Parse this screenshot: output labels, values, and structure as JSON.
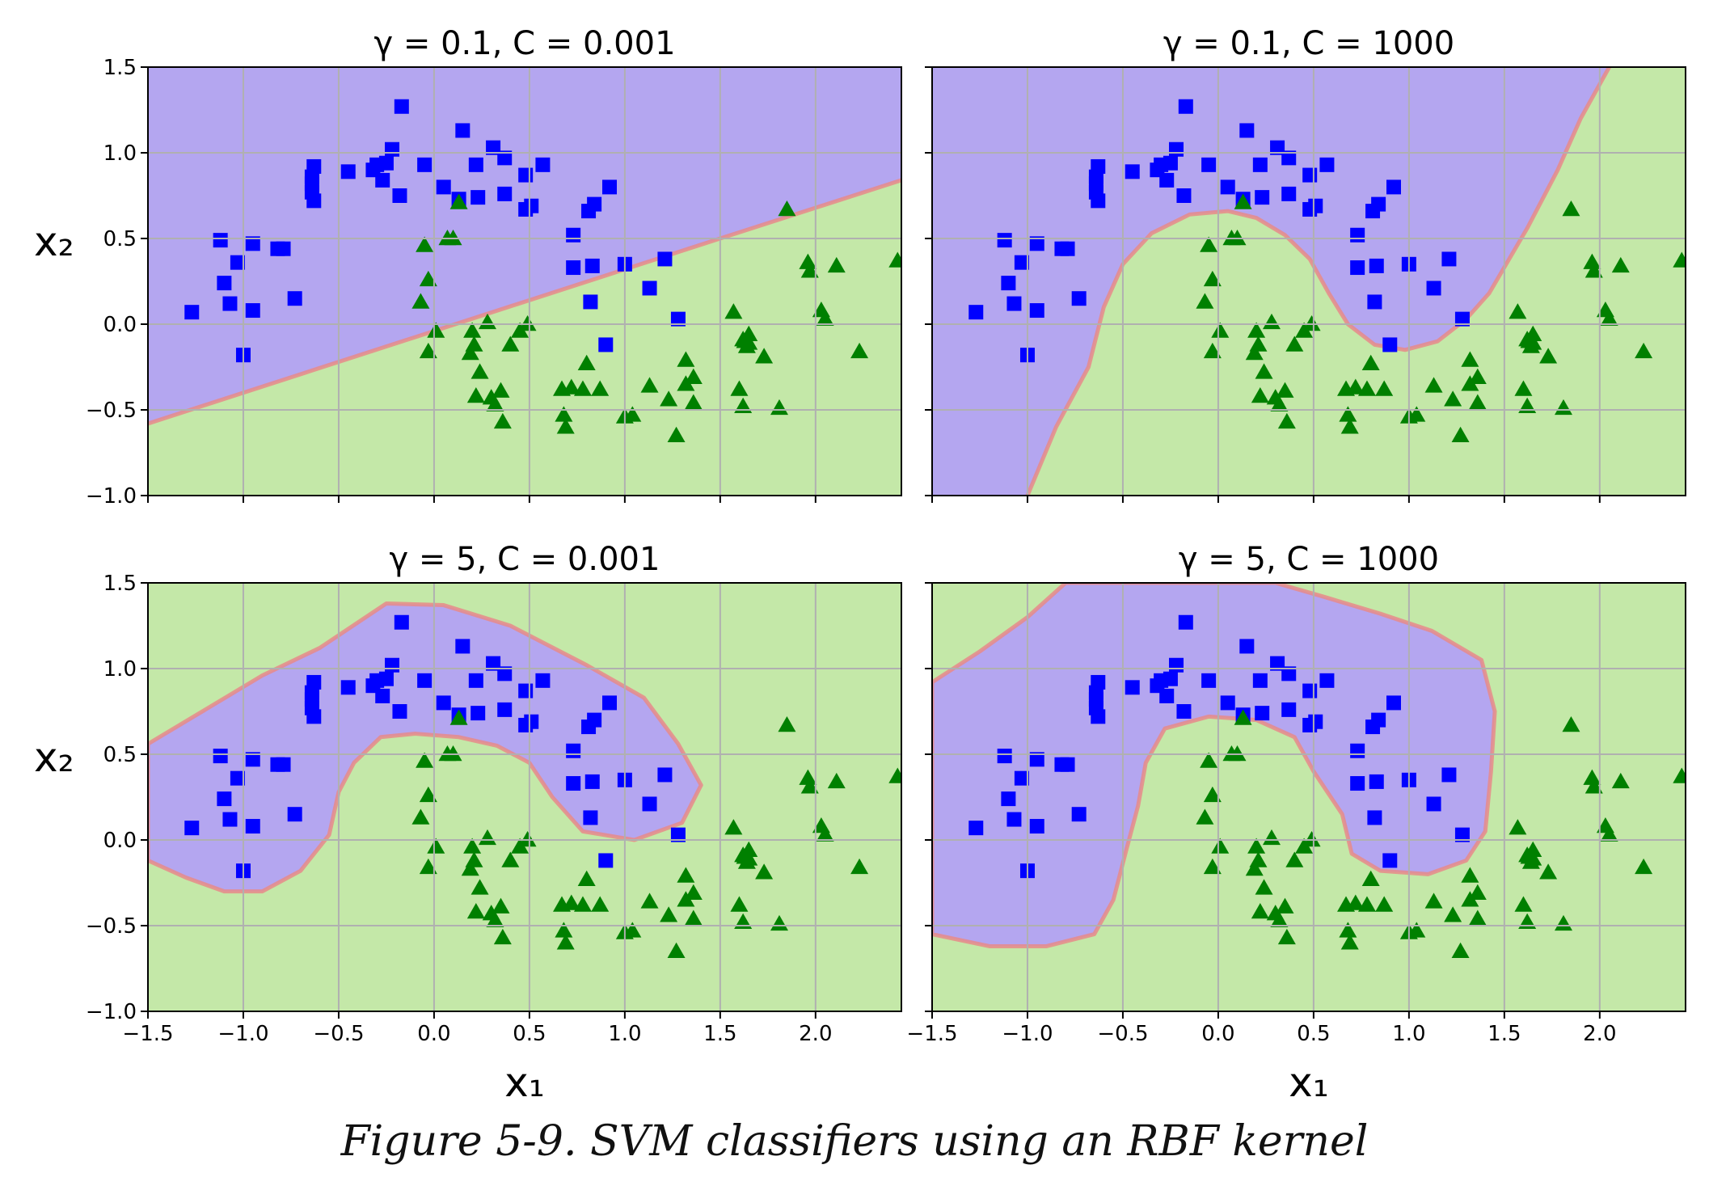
{
  "caption": "Figure 5-9. SVM classifiers using an RBF kernel",
  "colors": {
    "class0_marker": "#0000ff",
    "class1_marker": "#008000",
    "class0_region": "#b4a6f0",
    "class1_region": "#c4e8a8",
    "boundary": "#e88a8a",
    "grid": "#b0b0b0"
  },
  "points": {
    "squares": [
      [
        -1.27,
        0.07
      ],
      [
        -1.12,
        0.49
      ],
      [
        -1.1,
        0.24
      ],
      [
        -1.07,
        0.12
      ],
      [
        -1.03,
        0.36
      ],
      [
        -1.0,
        -0.18
      ],
      [
        -0.95,
        0.47
      ],
      [
        -0.95,
        0.08
      ],
      [
        -0.82,
        0.44
      ],
      [
        -0.79,
        0.44
      ],
      [
        -0.73,
        0.15
      ],
      [
        -0.64,
        0.86
      ],
      [
        -0.64,
        0.82
      ],
      [
        -0.64,
        0.77
      ],
      [
        -0.63,
        0.72
      ],
      [
        -0.63,
        0.92
      ],
      [
        -0.45,
        0.89
      ],
      [
        -0.32,
        0.9
      ],
      [
        -0.3,
        0.93
      ],
      [
        -0.27,
        0.84
      ],
      [
        -0.25,
        0.94
      ],
      [
        -0.22,
        1.02
      ],
      [
        -0.18,
        0.75
      ],
      [
        -0.17,
        1.27
      ],
      [
        -0.05,
        0.93
      ],
      [
        0.05,
        0.8
      ],
      [
        0.13,
        0.73
      ],
      [
        0.15,
        1.13
      ],
      [
        0.22,
        0.93
      ],
      [
        0.23,
        0.74
      ],
      [
        0.31,
        1.03
      ],
      [
        0.37,
        0.97
      ],
      [
        0.37,
        0.76
      ],
      [
        0.48,
        0.87
      ],
      [
        0.48,
        0.67
      ],
      [
        0.51,
        0.69
      ],
      [
        0.57,
        0.93
      ],
      [
        0.73,
        0.52
      ],
      [
        0.73,
        0.33
      ],
      [
        0.81,
        0.66
      ],
      [
        0.82,
        0.13
      ],
      [
        0.83,
        0.34
      ],
      [
        0.84,
        0.7
      ],
      [
        0.9,
        -0.12
      ],
      [
        0.92,
        0.8
      ],
      [
        1.0,
        0.35
      ],
      [
        1.13,
        0.21
      ],
      [
        1.21,
        0.38
      ],
      [
        1.28,
        0.03
      ]
    ],
    "triangles": [
      [
        -0.07,
        0.13
      ],
      [
        -0.05,
        0.46
      ],
      [
        -0.03,
        0.26
      ],
      [
        -0.03,
        -0.16
      ],
      [
        0.01,
        -0.04
      ],
      [
        0.07,
        0.5
      ],
      [
        0.1,
        0.5
      ],
      [
        0.13,
        0.71
      ],
      [
        0.19,
        -0.17
      ],
      [
        0.2,
        -0.04
      ],
      [
        0.21,
        -0.12
      ],
      [
        0.22,
        -0.42
      ],
      [
        0.24,
        -0.28
      ],
      [
        0.28,
        0.01
      ],
      [
        0.3,
        -0.43
      ],
      [
        0.32,
        -0.47
      ],
      [
        0.35,
        -0.39
      ],
      [
        0.36,
        -0.57
      ],
      [
        0.4,
        -0.12
      ],
      [
        0.45,
        -0.04
      ],
      [
        0.49,
        0.0
      ],
      [
        0.67,
        -0.38
      ],
      [
        0.68,
        -0.53
      ],
      [
        0.69,
        -0.6
      ],
      [
        0.72,
        -0.37
      ],
      [
        0.78,
        -0.38
      ],
      [
        0.8,
        -0.23
      ],
      [
        0.87,
        -0.38
      ],
      [
        1.0,
        -0.54
      ],
      [
        1.04,
        -0.53
      ],
      [
        1.13,
        -0.36
      ],
      [
        1.23,
        -0.44
      ],
      [
        1.27,
        -0.65
      ],
      [
        1.32,
        -0.21
      ],
      [
        1.32,
        -0.35
      ],
      [
        1.36,
        -0.31
      ],
      [
        1.36,
        -0.46
      ],
      [
        1.57,
        0.07
      ],
      [
        1.6,
        -0.38
      ],
      [
        1.62,
        -0.09
      ],
      [
        1.62,
        -0.48
      ],
      [
        1.63,
        -0.1
      ],
      [
        1.64,
        -0.13
      ],
      [
        1.65,
        -0.06
      ],
      [
        1.65,
        -0.11
      ],
      [
        1.73,
        -0.19
      ],
      [
        1.81,
        -0.49
      ],
      [
        1.85,
        0.67
      ],
      [
        1.96,
        0.36
      ],
      [
        1.97,
        0.31
      ],
      [
        2.03,
        0.08
      ],
      [
        2.05,
        0.03
      ],
      [
        2.11,
        0.34
      ],
      [
        2.23,
        -0.16
      ],
      [
        2.43,
        0.37
      ]
    ]
  },
  "chart_data": [
    {
      "type": "scatter",
      "title": "γ = 0.1, C = 0.001",
      "gamma": 0.1,
      "C": 0.001,
      "xlabel": "",
      "ylabel": "x₂",
      "xlim": [
        -1.5,
        2.45
      ],
      "ylim": [
        -1.0,
        1.5
      ],
      "xticks": [
        "",
        "",
        "",
        "",
        "",
        "",
        "",
        ""
      ],
      "yticks": [
        "−1.0",
        "−0.5",
        "0.0",
        "0.5",
        "1.0",
        "1.5"
      ],
      "boundary": [
        [
          -1.5,
          -0.58
        ],
        [
          -0.5,
          -0.22
        ],
        [
          0.5,
          0.14
        ],
        [
          1.5,
          0.5
        ],
        [
          2.45,
          0.84
        ]
      ],
      "boundary_fill": "class0_above",
      "grid": true
    },
    {
      "type": "scatter",
      "title": "γ = 0.1, C = 1000",
      "gamma": 0.1,
      "C": 1000,
      "xlabel": "",
      "ylabel": "",
      "xlim": [
        -1.5,
        2.45
      ],
      "ylim": [
        -1.0,
        1.5
      ],
      "xticks": [
        "",
        "",
        "",
        "",
        "",
        "",
        "",
        ""
      ],
      "yticks": [
        "",
        "",
        "",
        "",
        "",
        ""
      ],
      "boundary": [
        [
          -1.0,
          -1.0
        ],
        [
          -0.85,
          -0.6
        ],
        [
          -0.68,
          -0.25
        ],
        [
          -0.6,
          0.1
        ],
        [
          -0.5,
          0.35
        ],
        [
          -0.35,
          0.53
        ],
        [
          -0.15,
          0.64
        ],
        [
          0.05,
          0.66
        ],
        [
          0.2,
          0.62
        ],
        [
          0.35,
          0.52
        ],
        [
          0.48,
          0.38
        ],
        [
          0.58,
          0.18
        ],
        [
          0.68,
          0.0
        ],
        [
          0.82,
          -0.12
        ],
        [
          0.98,
          -0.15
        ],
        [
          1.15,
          -0.1
        ],
        [
          1.3,
          0.03
        ],
        [
          1.42,
          0.18
        ],
        [
          1.62,
          0.56
        ],
        [
          1.78,
          0.9
        ],
        [
          1.9,
          1.2
        ],
        [
          2.05,
          1.5
        ]
      ],
      "boundary_fill": "class0_left",
      "grid": true
    },
    {
      "type": "scatter",
      "title": "γ = 5, C = 0.001",
      "gamma": 5,
      "C": 0.001,
      "xlabel": "x₁",
      "ylabel": "x₂",
      "xlim": [
        -1.5,
        2.45
      ],
      "ylim": [
        -1.0,
        1.5
      ],
      "xticks": [
        "−1.5",
        "−1.0",
        "−0.5",
        "0.0",
        "0.5",
        "1.0",
        "1.5",
        "2.0"
      ],
      "yticks": [
        "−1.0",
        "−0.5",
        "0.0",
        "0.5",
        "1.0",
        "1.5"
      ],
      "boundary_closed": [
        [
          -1.5,
          0.56
        ],
        [
          -1.2,
          0.76
        ],
        [
          -0.9,
          0.96
        ],
        [
          -0.6,
          1.12
        ],
        [
          -0.25,
          1.38
        ],
        [
          0.05,
          1.37
        ],
        [
          0.4,
          1.25
        ],
        [
          0.8,
          1.02
        ],
        [
          1.1,
          0.83
        ],
        [
          1.28,
          0.56
        ],
        [
          1.4,
          0.32
        ],
        [
          1.3,
          0.1
        ],
        [
          1.05,
          0.0
        ],
        [
          0.78,
          0.05
        ],
        [
          0.62,
          0.25
        ],
        [
          0.5,
          0.45
        ],
        [
          0.33,
          0.55
        ],
        [
          0.13,
          0.6
        ],
        [
          -0.1,
          0.62
        ],
        [
          -0.28,
          0.6
        ],
        [
          -0.42,
          0.45
        ],
        [
          -0.5,
          0.28
        ],
        [
          -0.55,
          0.03
        ],
        [
          -0.7,
          -0.18
        ],
        [
          -0.9,
          -0.3
        ],
        [
          -1.1,
          -0.3
        ],
        [
          -1.3,
          -0.22
        ],
        [
          -1.5,
          -0.12
        ]
      ],
      "boundary_fill": "class0_inside",
      "grid": true
    },
    {
      "type": "scatter",
      "title": "γ = 5, C = 1000",
      "gamma": 5,
      "C": 1000,
      "xlabel": "x₁",
      "ylabel": "",
      "xlim": [
        -1.5,
        2.45
      ],
      "ylim": [
        -1.0,
        1.5
      ],
      "xticks": [
        "−1.5",
        "−1.0",
        "−0.5",
        "0.0",
        "0.5",
        "1.0",
        "1.5",
        "2.0"
      ],
      "yticks": [
        "",
        "",
        "",
        "",
        "",
        ""
      ],
      "boundary_closed": [
        [
          -1.5,
          0.92
        ],
        [
          -1.25,
          1.1
        ],
        [
          -1.0,
          1.3
        ],
        [
          -0.8,
          1.5
        ],
        [
          0.3,
          1.5
        ],
        [
          0.55,
          1.42
        ],
        [
          0.85,
          1.32
        ],
        [
          1.12,
          1.22
        ],
        [
          1.38,
          1.05
        ],
        [
          1.45,
          0.75
        ],
        [
          1.43,
          0.4
        ],
        [
          1.4,
          0.05
        ],
        [
          1.3,
          -0.12
        ],
        [
          1.1,
          -0.2
        ],
        [
          0.85,
          -0.18
        ],
        [
          0.7,
          -0.08
        ],
        [
          0.65,
          0.15
        ],
        [
          0.5,
          0.4
        ],
        [
          0.4,
          0.6
        ],
        [
          0.2,
          0.7
        ],
        [
          -0.05,
          0.72
        ],
        [
          -0.28,
          0.65
        ],
        [
          -0.38,
          0.45
        ],
        [
          -0.42,
          0.2
        ],
        [
          -0.48,
          -0.05
        ],
        [
          -0.55,
          -0.35
        ],
        [
          -0.65,
          -0.55
        ],
        [
          -0.9,
          -0.62
        ],
        [
          -1.2,
          -0.62
        ],
        [
          -1.5,
          -0.55
        ]
      ],
      "boundary_fill": "class0_inside",
      "grid": true
    }
  ]
}
